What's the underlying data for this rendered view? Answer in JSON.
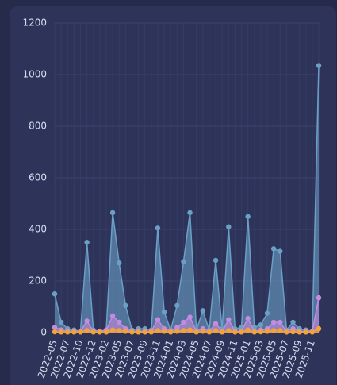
{
  "chart_data": {
    "type": "area",
    "categories": [
      "2022-05",
      null,
      "2022-07",
      null,
      "2022-10",
      null,
      "2022-12",
      null,
      "2023-02",
      null,
      "2023-05",
      null,
      "2023-07",
      null,
      "2023-09",
      null,
      "2023-11",
      null,
      "2024-01",
      null,
      "2024-03",
      null,
      "2024-05",
      null,
      "2024-07",
      null,
      "2024-09",
      null,
      "2024-11",
      null,
      "2025-01",
      null,
      "2025-03",
      null,
      "2025-05",
      null,
      "2025-07",
      null,
      "2025-09",
      null,
      "2025-11",
      null
    ],
    "series": [
      {
        "color": "#6b9fc6",
        "values": [
          150,
          40,
          15,
          10,
          5,
          350,
          10,
          5,
          10,
          465,
          270,
          105,
          10,
          15,
          15,
          10,
          405,
          80,
          10,
          105,
          275,
          465,
          10,
          85,
          10,
          280,
          15,
          410,
          15,
          20,
          450,
          20,
          30,
          75,
          325,
          315,
          10,
          40,
          15,
          10,
          5,
          1035
        ]
      },
      {
        "color": "#c58be0",
        "values": [
          20,
          10,
          5,
          5,
          5,
          45,
          5,
          5,
          10,
          65,
          40,
          15,
          5,
          5,
          5,
          5,
          50,
          15,
          5,
          20,
          40,
          60,
          5,
          15,
          5,
          35,
          5,
          50,
          5,
          5,
          55,
          5,
          10,
          15,
          40,
          40,
          5,
          15,
          5,
          5,
          5,
          135
        ]
      },
      {
        "color": "#f2a33c",
        "values": [
          3,
          2,
          2,
          2,
          2,
          8,
          2,
          2,
          2,
          10,
          8,
          5,
          2,
          2,
          2,
          2,
          8,
          5,
          2,
          5,
          8,
          10,
          2,
          5,
          2,
          8,
          2,
          8,
          2,
          2,
          10,
          2,
          3,
          5,
          8,
          8,
          2,
          3,
          2,
          2,
          2,
          15
        ]
      }
    ],
    "ylim": [
      0,
      1200
    ],
    "yticks": [
      0,
      200,
      400,
      600,
      800,
      1000,
      1200
    ],
    "grid": true
  }
}
